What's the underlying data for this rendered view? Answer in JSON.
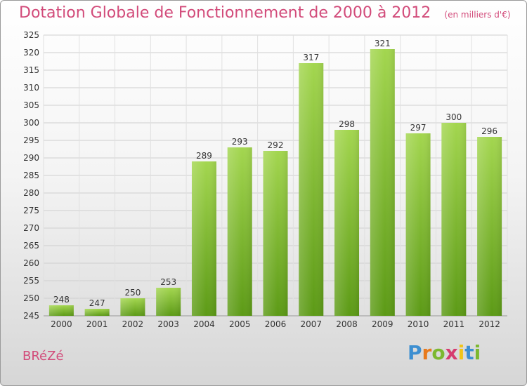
{
  "header": {
    "title": "Dotation Globale de Fonctionnement de 2000 à 2012",
    "unit": "(en milliers d'€)"
  },
  "footer": {
    "commune": "BRéZé",
    "logo_text": "Proxiti"
  },
  "colors": {
    "title": "#d24b7a",
    "bar_light": "#9fd14b",
    "bar_dark": "#5f9d18",
    "grid": "#cfcfcf"
  },
  "chart_data": {
    "type": "bar",
    "categories": [
      "2000",
      "2001",
      "2002",
      "2003",
      "2004",
      "2005",
      "2006",
      "2007",
      "2008",
      "2009",
      "2010",
      "2011",
      "2012"
    ],
    "values": [
      248,
      247,
      250,
      253,
      289,
      293,
      292,
      317,
      298,
      321,
      297,
      300,
      296
    ],
    "title": "Dotation Globale de Fonctionnement de 2000 à 2012",
    "ylim": [
      245,
      325
    ],
    "ytick_step": 5,
    "grid": true,
    "data_labels": true
  }
}
